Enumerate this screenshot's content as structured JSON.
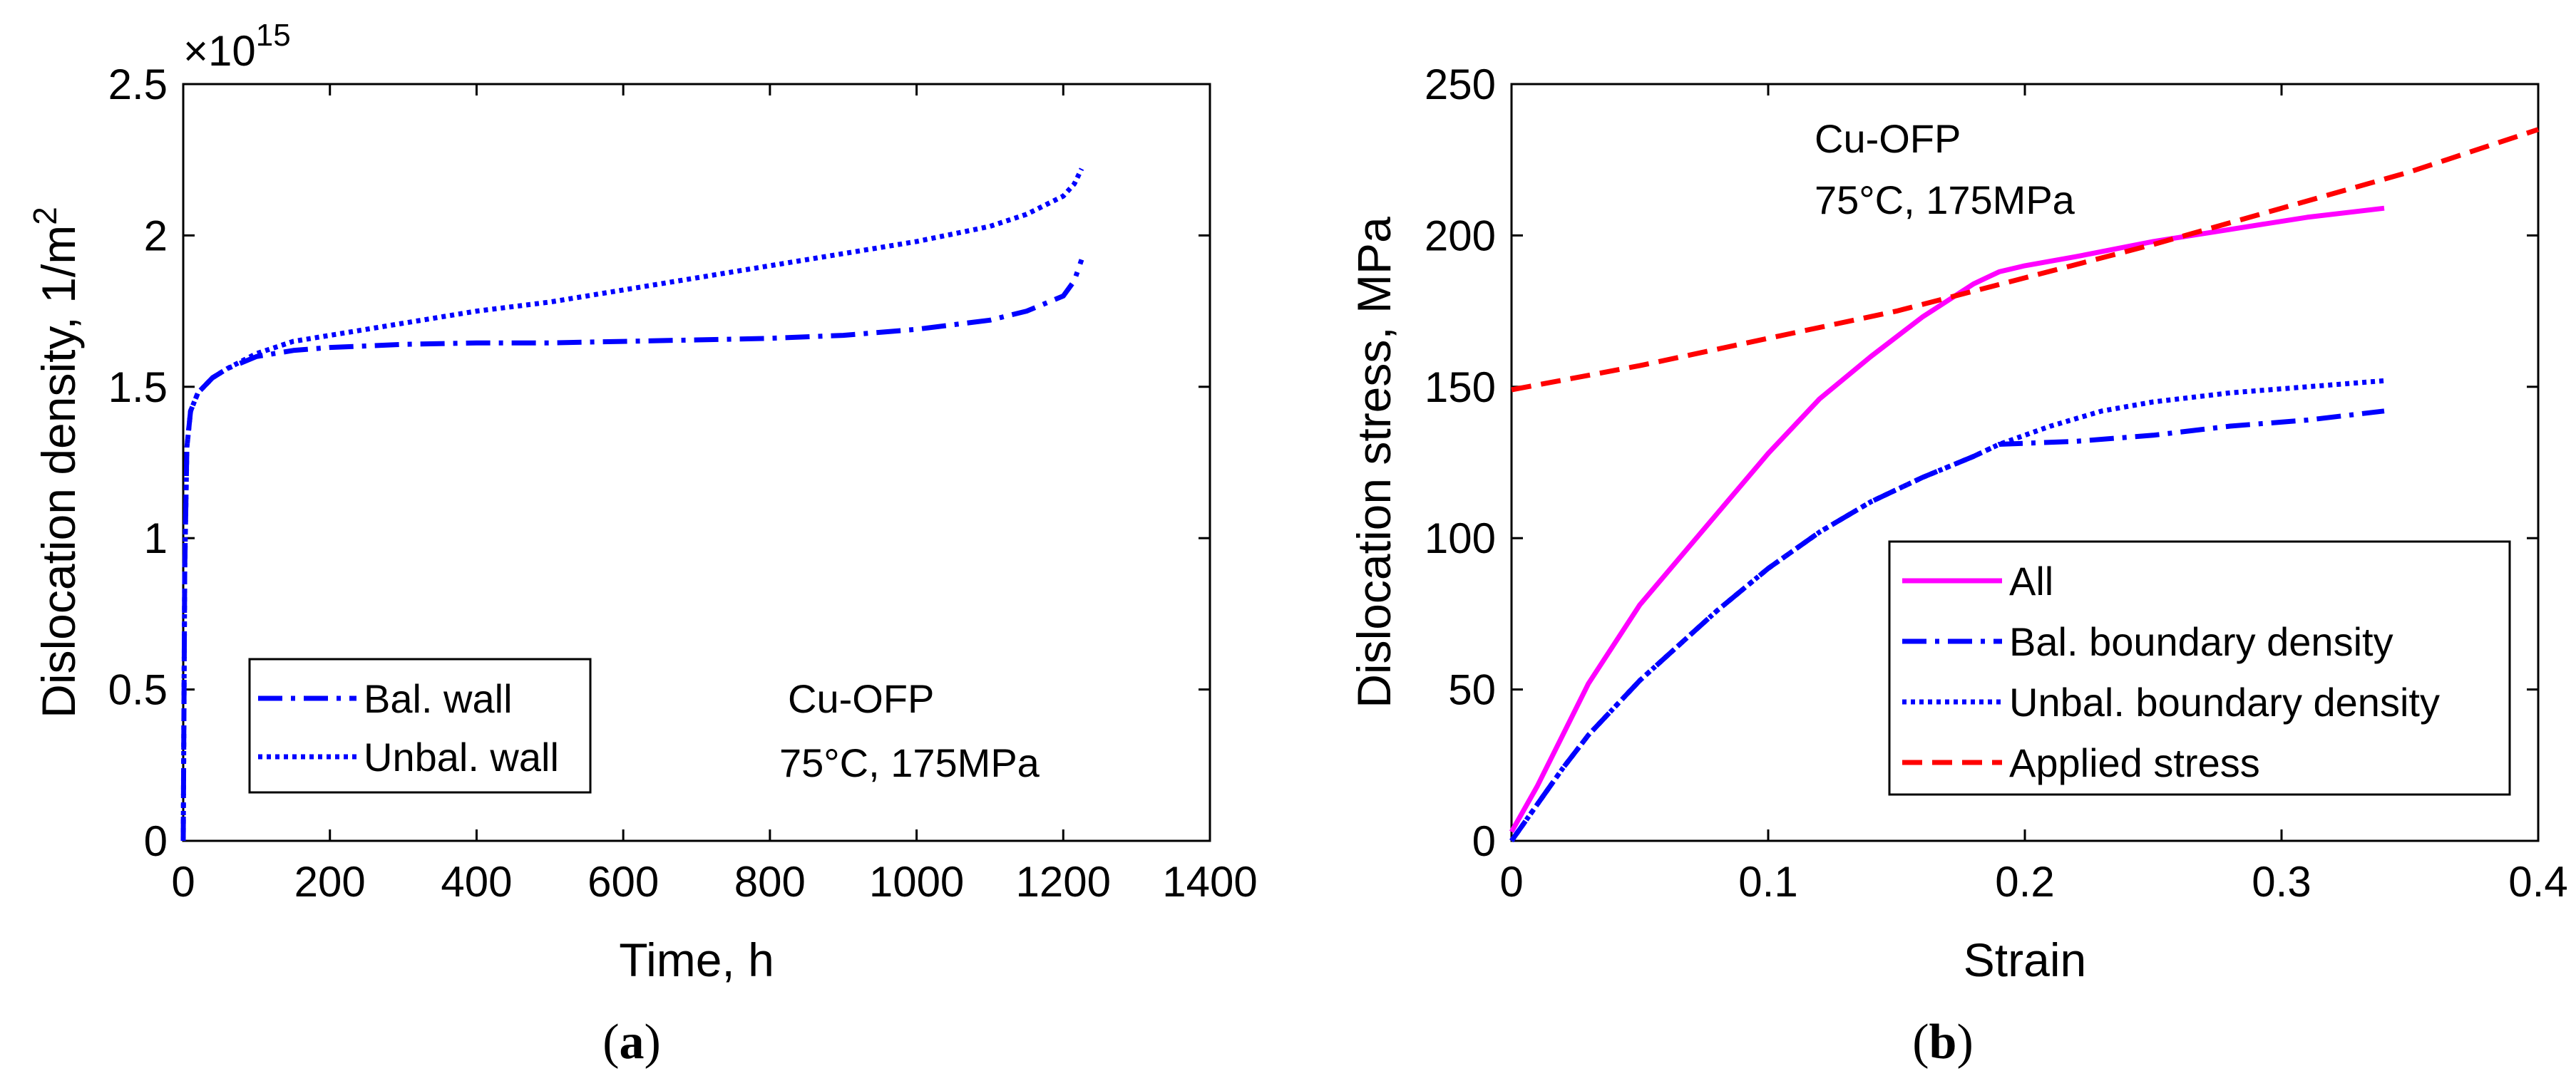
{
  "chart_data": [
    {
      "id": "a",
      "type": "line",
      "panel_label": "a",
      "xlabel": "Time, h",
      "ylabel_main": "Dislocation density, 1/m",
      "ylabel_sup": "2",
      "exponent_base": "×10",
      "exponent_power": "15",
      "xlim": [
        0,
        1400
      ],
      "ylim": [
        0,
        2.5
      ],
      "xticks": [
        0,
        200,
        400,
        600,
        800,
        1000,
        1200,
        1400
      ],
      "xtick_labels": [
        "0",
        "200",
        "400",
        "600",
        "800",
        "1000",
        "1200",
        "1400"
      ],
      "yticks": [
        0,
        0.5,
        1,
        1.5,
        2,
        2.5
      ],
      "ytick_labels": [
        "0",
        "0.5",
        "1",
        "1.5",
        "2",
        "2.5"
      ],
      "annotations": [
        "Cu-OFP",
        "75°C, 175MPa"
      ],
      "legend_position": "lower-left",
      "series": [
        {
          "name": "Bal. wall",
          "color": "#0000ff",
          "style": "dashdot",
          "points": [
            [
              0,
              0
            ],
            [
              2,
              0.9
            ],
            [
              5,
              1.3
            ],
            [
              10,
              1.42
            ],
            [
              20,
              1.48
            ],
            [
              40,
              1.53
            ],
            [
              60,
              1.56
            ],
            [
              100,
              1.6
            ],
            [
              150,
              1.62
            ],
            [
              200,
              1.63
            ],
            [
              300,
              1.64
            ],
            [
              400,
              1.645
            ],
            [
              500,
              1.645
            ],
            [
              600,
              1.65
            ],
            [
              700,
              1.655
            ],
            [
              800,
              1.66
            ],
            [
              900,
              1.67
            ],
            [
              1000,
              1.69
            ],
            [
              1100,
              1.72
            ],
            [
              1150,
              1.75
            ],
            [
              1200,
              1.8
            ],
            [
              1215,
              1.85
            ],
            [
              1225,
              1.92
            ]
          ]
        },
        {
          "name": "Unbal. wall",
          "color": "#0000ff",
          "style": "dotted",
          "points": [
            [
              0,
              0
            ],
            [
              2,
              0.9
            ],
            [
              5,
              1.3
            ],
            [
              10,
              1.42
            ],
            [
              20,
              1.48
            ],
            [
              40,
              1.53
            ],
            [
              60,
              1.56
            ],
            [
              100,
              1.61
            ],
            [
              150,
              1.65
            ],
            [
              200,
              1.67
            ],
            [
              300,
              1.71
            ],
            [
              400,
              1.75
            ],
            [
              500,
              1.78
            ],
            [
              600,
              1.82
            ],
            [
              700,
              1.86
            ],
            [
              800,
              1.9
            ],
            [
              900,
              1.94
            ],
            [
              1000,
              1.98
            ],
            [
              1100,
              2.03
            ],
            [
              1150,
              2.07
            ],
            [
              1200,
              2.13
            ],
            [
              1215,
              2.17
            ],
            [
              1225,
              2.22
            ]
          ]
        }
      ]
    },
    {
      "id": "b",
      "type": "line",
      "panel_label": "b",
      "xlabel": "Strain",
      "ylabel": "Dislocation stress, MPa",
      "xlim": [
        0,
        0.4
      ],
      "ylim": [
        0,
        250
      ],
      "xticks": [
        0,
        0.1,
        0.2,
        0.3,
        0.4
      ],
      "xtick_labels": [
        "0",
        "0.1",
        "0.2",
        "0.3",
        "0.4"
      ],
      "yticks": [
        0,
        50,
        100,
        150,
        200,
        250
      ],
      "ytick_labels": [
        "0",
        "50",
        "100",
        "150",
        "200",
        "250"
      ],
      "annotations": [
        "Cu-OFP",
        "75°C, 175MPa"
      ],
      "legend_position": "lower-right",
      "series": [
        {
          "name": "All",
          "color": "#ff00ff",
          "style": "solid",
          "points": [
            [
              0,
              3
            ],
            [
              0.01,
              18
            ],
            [
              0.02,
              35
            ],
            [
              0.03,
              52
            ],
            [
              0.05,
              78
            ],
            [
              0.08,
              108
            ],
            [
              0.1,
              128
            ],
            [
              0.12,
              146
            ],
            [
              0.14,
              160
            ],
            [
              0.16,
              173
            ],
            [
              0.18,
              184
            ],
            [
              0.19,
              188
            ],
            [
              0.2,
              190
            ],
            [
              0.22,
              193
            ],
            [
              0.25,
              198
            ],
            [
              0.28,
              202
            ],
            [
              0.31,
              206
            ],
            [
              0.34,
              209
            ]
          ]
        },
        {
          "name": "Bal. boundary density",
          "color": "#0000ff",
          "style": "dashdot",
          "points": [
            [
              0,
              0
            ],
            [
              0.01,
              12
            ],
            [
              0.02,
              24
            ],
            [
              0.03,
              35
            ],
            [
              0.05,
              53
            ],
            [
              0.08,
              76
            ],
            [
              0.1,
              90
            ],
            [
              0.12,
              102
            ],
            [
              0.14,
              112
            ],
            [
              0.16,
              120
            ],
            [
              0.18,
              127
            ],
            [
              0.19,
              131
            ],
            [
              0.22,
              132
            ],
            [
              0.25,
              134
            ],
            [
              0.28,
              137
            ],
            [
              0.31,
              139
            ],
            [
              0.34,
              142
            ]
          ]
        },
        {
          "name": "Unbal. boundary density",
          "color": "#0000ff",
          "style": "dotted",
          "points": [
            [
              0,
              0
            ],
            [
              0.01,
              12
            ],
            [
              0.02,
              24
            ],
            [
              0.03,
              35
            ],
            [
              0.05,
              53
            ],
            [
              0.08,
              76
            ],
            [
              0.1,
              90
            ],
            [
              0.12,
              102
            ],
            [
              0.14,
              112
            ],
            [
              0.16,
              120
            ],
            [
              0.18,
              127
            ],
            [
              0.19,
              131
            ],
            [
              0.21,
              137
            ],
            [
              0.23,
              142
            ],
            [
              0.25,
              145
            ],
            [
              0.28,
              148
            ],
            [
              0.31,
              150
            ],
            [
              0.34,
              152
            ]
          ]
        },
        {
          "name": "Applied stress",
          "color": "#ff0000",
          "style": "dashed",
          "points": [
            [
              0,
              149
            ],
            [
              0.05,
              157
            ],
            [
              0.1,
              166
            ],
            [
              0.15,
              175
            ],
            [
              0.2,
              186
            ],
            [
              0.25,
              197
            ],
            [
              0.3,
              209
            ],
            [
              0.35,
              221
            ],
            [
              0.4,
              235
            ]
          ]
        }
      ]
    }
  ]
}
